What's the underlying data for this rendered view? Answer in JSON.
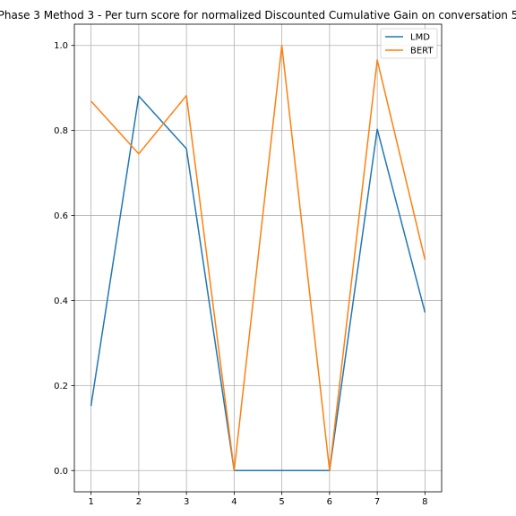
{
  "chart_data": {
    "type": "line",
    "title": "Phase 3 Method 3 - Per turn score for normalized Discounted Cumulative Gain on conversation 5",
    "xlabel": "",
    "ylabel": "",
    "x": [
      1,
      2,
      3,
      4,
      5,
      6,
      7,
      8
    ],
    "xticks": [
      "1",
      "2",
      "3",
      "4",
      "5",
      "6",
      "7",
      "8"
    ],
    "yticks": [
      "0.0",
      "0.2",
      "0.4",
      "0.6",
      "0.8",
      "1.0"
    ],
    "ytick_values": [
      0.0,
      0.2,
      0.4,
      0.6,
      0.8,
      1.0
    ],
    "xlim": [
      0.65,
      8.35
    ],
    "ylim": [
      -0.05,
      1.05
    ],
    "grid": true,
    "legend_position": "top-right",
    "series": [
      {
        "name": "LMD",
        "color": "#1f77b4",
        "values": [
          0.152,
          0.881,
          0.757,
          0.0,
          0.0,
          0.0,
          0.803,
          0.372
        ]
      },
      {
        "name": "BERT",
        "color": "#ff7f0e",
        "values": [
          0.869,
          0.745,
          0.882,
          0.0,
          1.0,
          0.0,
          0.966,
          0.496
        ]
      }
    ]
  }
}
